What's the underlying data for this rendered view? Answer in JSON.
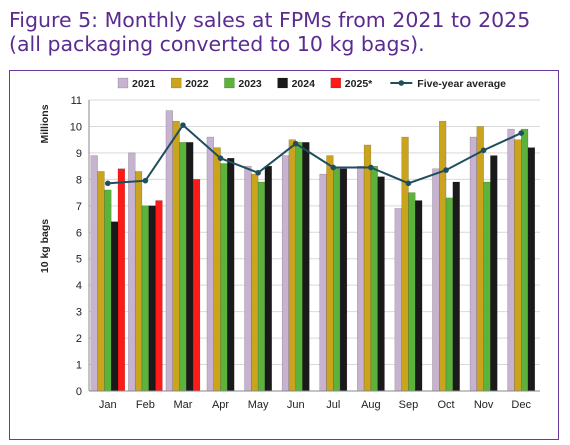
{
  "figure": {
    "title_line1": "Figure 5: Monthly sales at FPMs from 2021 to 2025",
    "title_line2": "(all packaging converted to 10 kg bags)."
  },
  "chart_data": {
    "type": "bar",
    "title": "Figure 5: Monthly sales at FPMs from 2021 to 2025 (all packaging converted to 10 kg bags).",
    "ylabel": "10 kg bags",
    "yunit": "Millions",
    "xlabel": "",
    "ylim": [
      0,
      11
    ],
    "yticks": [
      0,
      1,
      2,
      3,
      4,
      5,
      6,
      7,
      8,
      9,
      10,
      11
    ],
    "grid": true,
    "legend_position": "top",
    "categories": [
      "Jan",
      "Feb",
      "Mar",
      "Apr",
      "May",
      "Jun",
      "Jul",
      "Aug",
      "Sep",
      "Oct",
      "Nov",
      "Dec"
    ],
    "series": [
      {
        "name": "2021",
        "type": "bar",
        "color": "#c7b3cf",
        "values": [
          8.9,
          9.0,
          10.6,
          9.6,
          8.5,
          8.9,
          8.2,
          8.5,
          6.9,
          8.4,
          9.6,
          9.9
        ]
      },
      {
        "name": "2022",
        "type": "bar",
        "color": "#c9a41c",
        "values": [
          8.3,
          8.3,
          10.2,
          9.2,
          8.2,
          9.5,
          8.9,
          9.3,
          9.6,
          10.2,
          10.0,
          9.5
        ]
      },
      {
        "name": "2023",
        "type": "bar",
        "color": "#5bb33c",
        "values": [
          7.6,
          7.0,
          9.4,
          8.6,
          7.9,
          9.4,
          8.4,
          8.5,
          7.5,
          7.3,
          7.9,
          9.9
        ]
      },
      {
        "name": "2024",
        "type": "bar",
        "color": "#1a1a1a",
        "values": [
          6.4,
          7.0,
          9.4,
          8.8,
          8.5,
          9.4,
          8.4,
          8.1,
          7.2,
          7.9,
          8.9,
          9.2
        ]
      },
      {
        "name": "2025*",
        "type": "bar",
        "color": "#ff1a1a",
        "values": [
          8.4,
          7.2,
          8.0,
          null,
          null,
          null,
          null,
          null,
          null,
          null,
          null,
          null
        ]
      },
      {
        "name": "Five-year average",
        "type": "line",
        "color": "#1f4e5f",
        "values": [
          7.85,
          7.95,
          10.05,
          8.8,
          8.25,
          9.35,
          8.45,
          8.45,
          7.85,
          8.35,
          9.1,
          9.75
        ]
      }
    ]
  }
}
